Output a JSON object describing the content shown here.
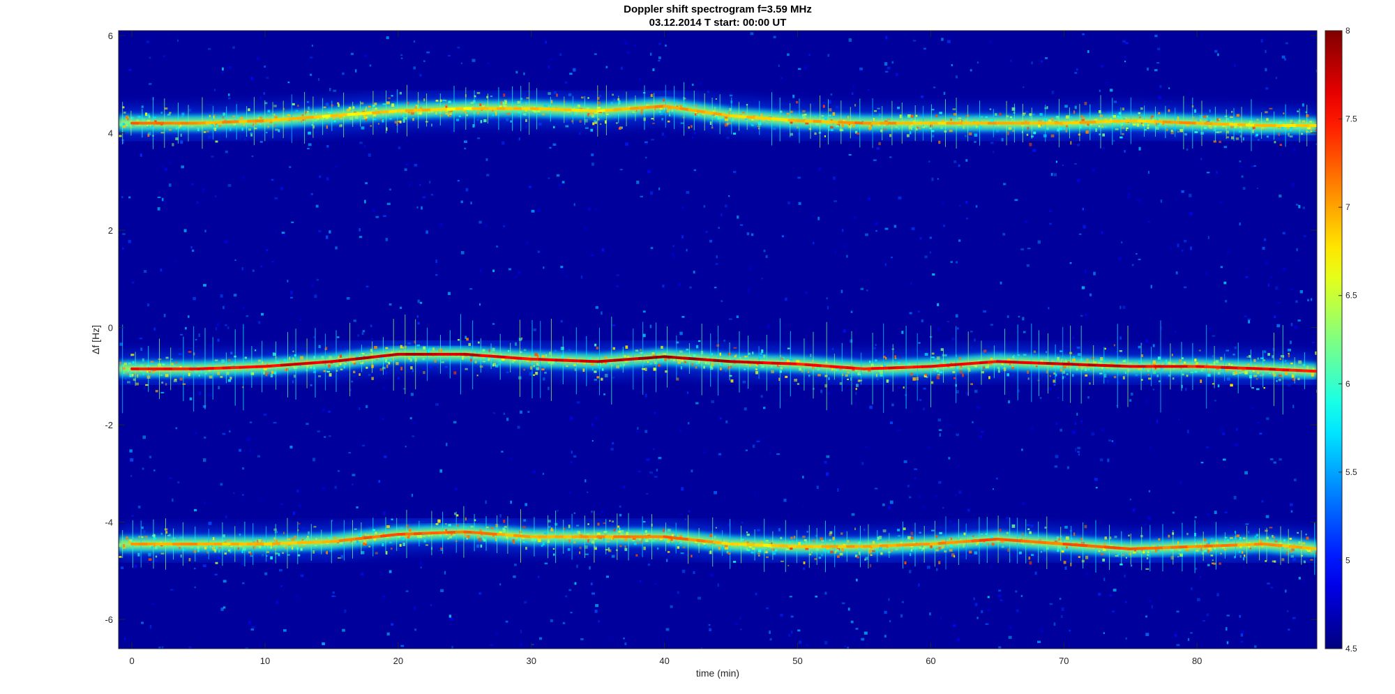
{
  "chart_data": {
    "type": "heatmap",
    "title": "Doppler shift spectrogram f=3.59 MHz",
    "subtitle": "03.12.2014   T start: 00:00 UT",
    "xlabel": "time (min)",
    "ylabel": "Δf [Hz]",
    "xlim": [
      -1,
      89
    ],
    "ylim": [
      -6.6,
      6.1
    ],
    "xticks": [
      0,
      10,
      20,
      30,
      40,
      50,
      60,
      70,
      80
    ],
    "yticks": [
      6,
      4,
      2,
      0,
      -2,
      -4,
      -6
    ],
    "colorbar": {
      "colormap": "jet",
      "clim": [
        4.5,
        8
      ],
      "ticks": [
        8,
        7.5,
        7,
        6.5,
        6,
        5.5,
        5,
        4.5
      ]
    },
    "series": [
      {
        "x": [
          0,
          5,
          10,
          15,
          20,
          25,
          30,
          35,
          40,
          45,
          50,
          55,
          60,
          65,
          70,
          75,
          80,
          85,
          89
        ],
        "y": [
          4.2,
          4.2,
          4.25,
          4.35,
          4.45,
          4.5,
          4.5,
          4.45,
          4.55,
          4.35,
          4.25,
          4.2,
          4.2,
          4.2,
          4.2,
          4.25,
          4.2,
          4.15,
          4.15
        ],
        "intensity": [
          7.2,
          7.0,
          7.0,
          6.8,
          6.9,
          6.8,
          6.9,
          6.8,
          7.1,
          6.9,
          6.9,
          7.1,
          6.9,
          7.0,
          6.9,
          6.9,
          7.0,
          6.8,
          6.9
        ]
      },
      {
        "x": [
          0,
          5,
          10,
          15,
          20,
          25,
          30,
          35,
          40,
          45,
          50,
          55,
          60,
          65,
          70,
          75,
          80,
          85,
          89
        ],
        "y": [
          -0.85,
          -0.85,
          -0.8,
          -0.7,
          -0.55,
          -0.55,
          -0.65,
          -0.7,
          -0.6,
          -0.7,
          -0.75,
          -0.85,
          -0.8,
          -0.7,
          -0.75,
          -0.8,
          -0.8,
          -0.85,
          -0.9
        ],
        "intensity": [
          7.6,
          7.5,
          7.6,
          7.7,
          7.8,
          7.7,
          7.6,
          7.7,
          7.9,
          7.8,
          7.5,
          7.5,
          7.6,
          7.6,
          7.8,
          7.6,
          7.5,
          7.6,
          7.5
        ]
      },
      {
        "x": [
          0,
          5,
          10,
          15,
          20,
          25,
          30,
          35,
          40,
          45,
          50,
          55,
          60,
          65,
          70,
          75,
          80,
          85,
          89
        ],
        "y": [
          -4.45,
          -4.45,
          -4.45,
          -4.4,
          -4.25,
          -4.2,
          -4.3,
          -4.3,
          -4.3,
          -4.45,
          -4.5,
          -4.5,
          -4.45,
          -4.35,
          -4.45,
          -4.55,
          -4.5,
          -4.45,
          -4.55
        ],
        "intensity": [
          7.0,
          7.0,
          6.9,
          7.0,
          7.3,
          7.2,
          6.9,
          7.0,
          7.2,
          6.9,
          6.8,
          7.0,
          7.0,
          7.3,
          7.2,
          7.3,
          7.1,
          7.0,
          7.0
        ]
      }
    ]
  }
}
